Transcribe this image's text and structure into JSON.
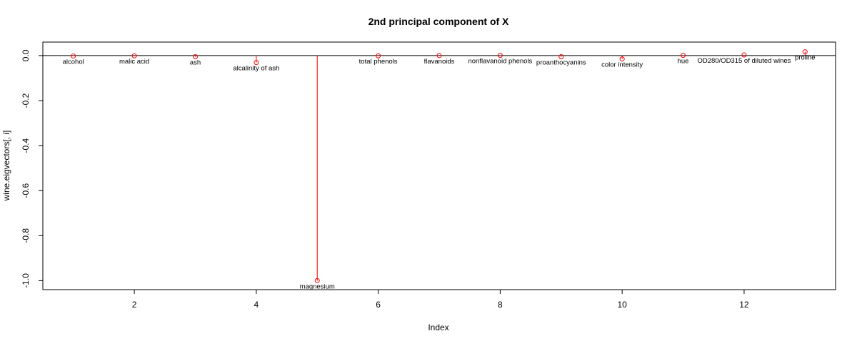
{
  "chart_data": {
    "type": "scatter",
    "title": "2nd principal component of X",
    "xlabel": "Index",
    "ylabel": "wine.eigvectors[, i]",
    "xlim": [
      0.5,
      13.5
    ],
    "ylim": [
      -1.04,
      0.06
    ],
    "xticks": [
      2,
      4,
      6,
      8,
      10,
      12
    ],
    "yticks": [
      0.0,
      -0.2,
      -0.4,
      -0.6,
      -0.8,
      -1.0
    ],
    "xtick_labels": [
      "2",
      "4",
      "6",
      "8",
      "10",
      "12"
    ],
    "ytick_labels": [
      "0.0",
      "-0.2",
      "-0.4",
      "-0.6",
      "-0.8",
      "-1.0"
    ],
    "reference_line_y": 0,
    "grid": false,
    "point_color": "#ff0000",
    "points": [
      {
        "x": 1,
        "y": -0.002,
        "label": "alcohol"
      },
      {
        "x": 2,
        "y": -0.001,
        "label": "malic acid"
      },
      {
        "x": 3,
        "y": -0.005,
        "label": "ash"
      },
      {
        "x": 4,
        "y": -0.031,
        "label": "alcalinity of ash"
      },
      {
        "x": 5,
        "y": -1.0,
        "label": "magnesium"
      },
      {
        "x": 6,
        "y": -0.001,
        "label": "total phenols"
      },
      {
        "x": 7,
        "y": 0.0,
        "label": "flavanoids"
      },
      {
        "x": 8,
        "y": 0.001,
        "label": "nonflavanoid phenols"
      },
      {
        "x": 9,
        "y": -0.005,
        "label": "proanthocyanins"
      },
      {
        "x": 10,
        "y": -0.015,
        "label": "color intensity"
      },
      {
        "x": 11,
        "y": 0.001,
        "label": "hue"
      },
      {
        "x": 12,
        "y": 0.003,
        "label": "OD280/OD315 of diluted wines"
      },
      {
        "x": 13,
        "y": 0.017,
        "label": "proline"
      }
    ]
  }
}
